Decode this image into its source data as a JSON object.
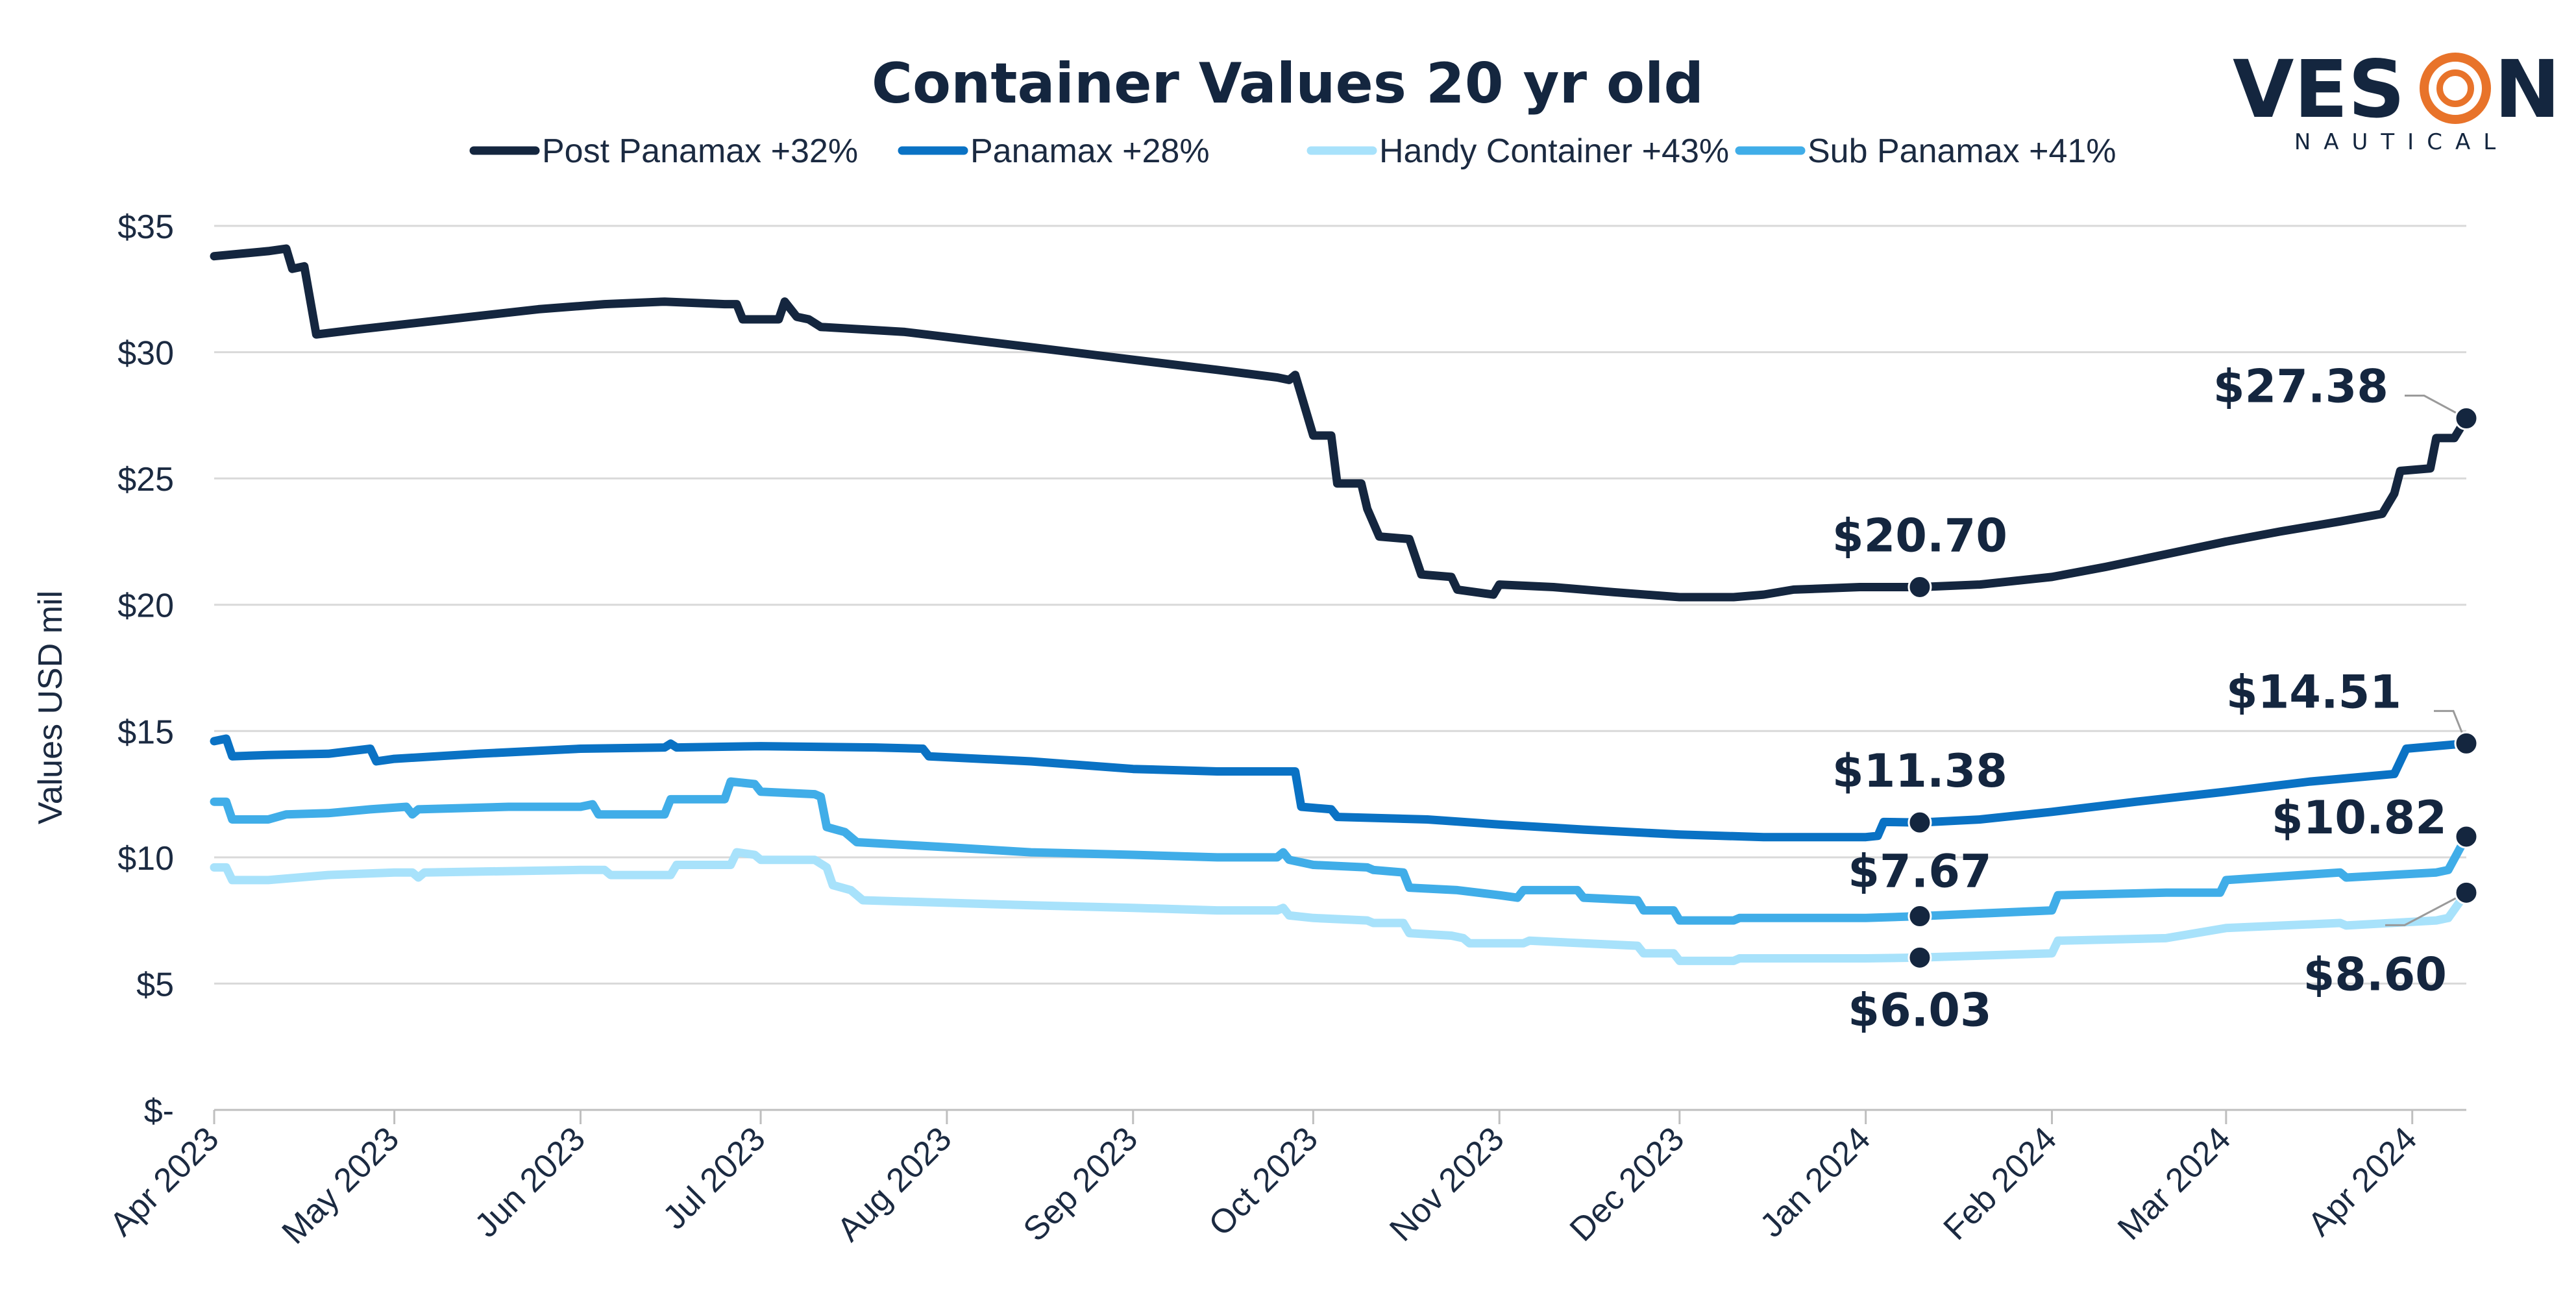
{
  "logo": {
    "text": "VES",
    "text_after": "N",
    "subtext": "NAUTICAL",
    "accent_color": "#e8732a",
    "color": "#14263f"
  },
  "chart_data": {
    "type": "line",
    "title": "Container Values 20 yr old",
    "ylabel": "Values USD mil",
    "xlabel": "",
    "ylim": [
      0,
      35
    ],
    "yticks": [
      {
        "value": 0,
        "label": "$-"
      },
      {
        "value": 5,
        "label": "$5"
      },
      {
        "value": 10,
        "label": "$10"
      },
      {
        "value": 15,
        "label": "$15"
      },
      {
        "value": 20,
        "label": "$20"
      },
      {
        "value": 25,
        "label": "$25"
      },
      {
        "value": 30,
        "label": "$30"
      },
      {
        "value": 35,
        "label": "$35"
      }
    ],
    "xlim": [
      "2023-04-01",
      "2024-04-10"
    ],
    "xticks": [
      {
        "date": "2023-04-01",
        "label": "Apr 2023"
      },
      {
        "date": "2023-05-01",
        "label": "May 2023"
      },
      {
        "date": "2023-06-01",
        "label": "Jun 2023"
      },
      {
        "date": "2023-07-01",
        "label": "Jul 2023"
      },
      {
        "date": "2023-08-01",
        "label": "Aug 2023"
      },
      {
        "date": "2023-09-01",
        "label": "Sep 2023"
      },
      {
        "date": "2023-10-01",
        "label": "Oct 2023"
      },
      {
        "date": "2023-11-01",
        "label": "Nov 2023"
      },
      {
        "date": "2023-12-01",
        "label": "Dec 2023"
      },
      {
        "date": "2024-01-01",
        "label": "Jan 2024"
      },
      {
        "date": "2024-02-01",
        "label": "Feb 2024"
      },
      {
        "date": "2024-03-01",
        "label": "Mar 2024"
      },
      {
        "date": "2024-04-01",
        "label": "Apr 2024"
      }
    ],
    "grid": "horizontal",
    "legend_position": "top-center",
    "series": [
      {
        "name": "Post Panamax +32%",
        "color": "#14263f",
        "points": [
          [
            "2023-04-01",
            33.8
          ],
          [
            "2023-04-10",
            34.0
          ],
          [
            "2023-04-13",
            34.1
          ],
          [
            "2023-04-14",
            33.3
          ],
          [
            "2023-04-16",
            33.4
          ],
          [
            "2023-04-18",
            30.7
          ],
          [
            "2023-04-25",
            30.9
          ],
          [
            "2023-05-10",
            31.3
          ],
          [
            "2023-05-25",
            31.7
          ],
          [
            "2023-06-05",
            31.9
          ],
          [
            "2023-06-15",
            32.0
          ],
          [
            "2023-06-25",
            31.9
          ],
          [
            "2023-06-27",
            31.9
          ],
          [
            "2023-06-28",
            31.3
          ],
          [
            "2023-07-04",
            31.3
          ],
          [
            "2023-07-05",
            32.0
          ],
          [
            "2023-07-07",
            31.4
          ],
          [
            "2023-07-09",
            31.3
          ],
          [
            "2023-07-11",
            31.0
          ],
          [
            "2023-07-25",
            30.8
          ],
          [
            "2023-08-01",
            30.6
          ],
          [
            "2023-08-15",
            30.2
          ],
          [
            "2023-09-01",
            29.7
          ],
          [
            "2023-09-15",
            29.3
          ],
          [
            "2023-09-25",
            29.0
          ],
          [
            "2023-09-27",
            28.9
          ],
          [
            "2023-09-28",
            29.1
          ],
          [
            "2023-09-29",
            28.3
          ],
          [
            "2023-10-01",
            26.7
          ],
          [
            "2023-10-04",
            26.7
          ],
          [
            "2023-10-05",
            24.8
          ],
          [
            "2023-10-09",
            24.8
          ],
          [
            "2023-10-10",
            23.8
          ],
          [
            "2023-10-12",
            22.7
          ],
          [
            "2023-10-17",
            22.6
          ],
          [
            "2023-10-19",
            21.2
          ],
          [
            "2023-10-24",
            21.1
          ],
          [
            "2023-10-25",
            20.6
          ],
          [
            "2023-10-31",
            20.4
          ],
          [
            "2023-11-01",
            20.8
          ],
          [
            "2023-11-10",
            20.7
          ],
          [
            "2023-11-20",
            20.5
          ],
          [
            "2023-12-01",
            20.3
          ],
          [
            "2023-12-10",
            20.3
          ],
          [
            "2023-12-15",
            20.4
          ],
          [
            "2023-12-20",
            20.6
          ],
          [
            "2023-12-31",
            20.7
          ],
          [
            "2024-01-10",
            20.7
          ],
          [
            "2024-01-20",
            20.8
          ],
          [
            "2024-02-01",
            21.1
          ],
          [
            "2024-02-10",
            21.5
          ],
          [
            "2024-02-20",
            22.0
          ],
          [
            "2024-03-01",
            22.5
          ],
          [
            "2024-03-10",
            22.9
          ],
          [
            "2024-03-20",
            23.3
          ],
          [
            "2024-03-27",
            23.6
          ],
          [
            "2024-03-29",
            24.4
          ],
          [
            "2024-03-30",
            25.3
          ],
          [
            "2024-04-04",
            25.4
          ],
          [
            "2024-04-05",
            26.6
          ],
          [
            "2024-04-08",
            26.6
          ],
          [
            "2024-04-10",
            27.38
          ]
        ]
      },
      {
        "name": "Panamax +28%",
        "color": "#0a72c4",
        "points": [
          [
            "2023-04-01",
            14.6
          ],
          [
            "2023-04-03",
            14.7
          ],
          [
            "2023-04-04",
            14.0
          ],
          [
            "2023-04-10",
            14.05
          ],
          [
            "2023-04-20",
            14.1
          ],
          [
            "2023-04-27",
            14.3
          ],
          [
            "2023-04-28",
            13.8
          ],
          [
            "2023-05-01",
            13.9
          ],
          [
            "2023-05-15",
            14.1
          ],
          [
            "2023-06-01",
            14.3
          ],
          [
            "2023-06-15",
            14.35
          ],
          [
            "2023-06-16",
            14.5
          ],
          [
            "2023-06-17",
            14.35
          ],
          [
            "2023-07-01",
            14.4
          ],
          [
            "2023-07-20",
            14.35
          ],
          [
            "2023-07-28",
            14.3
          ],
          [
            "2023-07-29",
            14.0
          ],
          [
            "2023-08-15",
            13.8
          ],
          [
            "2023-09-01",
            13.5
          ],
          [
            "2023-09-15",
            13.4
          ],
          [
            "2023-09-28",
            13.4
          ],
          [
            "2023-09-29",
            12.0
          ],
          [
            "2023-10-04",
            11.9
          ],
          [
            "2023-10-05",
            11.6
          ],
          [
            "2023-10-20",
            11.5
          ],
          [
            "2023-11-01",
            11.3
          ],
          [
            "2023-11-15",
            11.1
          ],
          [
            "2023-12-01",
            10.9
          ],
          [
            "2023-12-15",
            10.8
          ],
          [
            "2024-01-01",
            10.8
          ],
          [
            "2024-01-03",
            10.85
          ],
          [
            "2024-01-04",
            11.4
          ],
          [
            "2024-01-10",
            11.38
          ],
          [
            "2024-01-20",
            11.5
          ],
          [
            "2024-02-01",
            11.8
          ],
          [
            "2024-02-15",
            12.2
          ],
          [
            "2024-03-01",
            12.6
          ],
          [
            "2024-03-15",
            13.0
          ],
          [
            "2024-03-29",
            13.3
          ],
          [
            "2024-03-31",
            14.3
          ],
          [
            "2024-04-10",
            14.51
          ]
        ]
      },
      {
        "name": "Handy Container +43%",
        "color": "#a8e2fb",
        "points": [
          [
            "2023-04-01",
            9.6
          ],
          [
            "2023-04-03",
            9.6
          ],
          [
            "2023-04-04",
            9.1
          ],
          [
            "2023-04-10",
            9.1
          ],
          [
            "2023-04-20",
            9.3
          ],
          [
            "2023-05-01",
            9.4
          ],
          [
            "2023-05-04",
            9.4
          ],
          [
            "2023-05-05",
            9.2
          ],
          [
            "2023-05-06",
            9.4
          ],
          [
            "2023-06-01",
            9.5
          ],
          [
            "2023-06-05",
            9.5
          ],
          [
            "2023-06-06",
            9.3
          ],
          [
            "2023-06-16",
            9.3
          ],
          [
            "2023-06-17",
            9.7
          ],
          [
            "2023-06-26",
            9.7
          ],
          [
            "2023-06-27",
            10.2
          ],
          [
            "2023-06-30",
            10.1
          ],
          [
            "2023-07-01",
            9.9
          ],
          [
            "2023-07-10",
            9.9
          ],
          [
            "2023-07-12",
            9.6
          ],
          [
            "2023-07-13",
            8.9
          ],
          [
            "2023-07-16",
            8.7
          ],
          [
            "2023-07-18",
            8.3
          ],
          [
            "2023-08-01",
            8.2
          ],
          [
            "2023-08-15",
            8.1
          ],
          [
            "2023-09-01",
            8.0
          ],
          [
            "2023-09-15",
            7.9
          ],
          [
            "2023-09-25",
            7.9
          ],
          [
            "2023-09-26",
            8.0
          ],
          [
            "2023-09-27",
            7.7
          ],
          [
            "2023-10-01",
            7.6
          ],
          [
            "2023-10-10",
            7.5
          ],
          [
            "2023-10-11",
            7.4
          ],
          [
            "2023-10-16",
            7.4
          ],
          [
            "2023-10-17",
            7.0
          ],
          [
            "2023-10-24",
            6.9
          ],
          [
            "2023-10-26",
            6.8
          ],
          [
            "2023-10-27",
            6.6
          ],
          [
            "2023-11-05",
            6.6
          ],
          [
            "2023-11-06",
            6.7
          ],
          [
            "2023-11-15",
            6.6
          ],
          [
            "2023-11-24",
            6.5
          ],
          [
            "2023-11-25",
            6.2
          ],
          [
            "2023-11-30",
            6.2
          ],
          [
            "2023-12-01",
            5.9
          ],
          [
            "2023-12-10",
            5.9
          ],
          [
            "2023-12-11",
            6.0
          ],
          [
            "2024-01-01",
            6.0
          ],
          [
            "2024-01-10",
            6.03
          ],
          [
            "2024-02-01",
            6.2
          ],
          [
            "2024-02-02",
            6.7
          ],
          [
            "2024-02-20",
            6.8
          ],
          [
            "2024-03-01",
            7.2
          ],
          [
            "2024-03-20",
            7.4
          ],
          [
            "2024-03-21",
            7.3
          ],
          [
            "2024-04-05",
            7.5
          ],
          [
            "2024-04-07",
            7.6
          ],
          [
            "2024-04-10",
            8.6
          ]
        ]
      },
      {
        "name": "Sub Panamax +41%",
        "color": "#40ade8",
        "points": [
          [
            "2023-04-01",
            12.2
          ],
          [
            "2023-04-03",
            12.2
          ],
          [
            "2023-04-04",
            11.5
          ],
          [
            "2023-04-10",
            11.5
          ],
          [
            "2023-04-13",
            11.7
          ],
          [
            "2023-04-20",
            11.75
          ],
          [
            "2023-04-27",
            11.9
          ],
          [
            "2023-05-03",
            12.0
          ],
          [
            "2023-05-04",
            11.7
          ],
          [
            "2023-05-05",
            11.9
          ],
          [
            "2023-05-20",
            12.0
          ],
          [
            "2023-06-01",
            12.0
          ],
          [
            "2023-06-03",
            12.1
          ],
          [
            "2023-06-04",
            11.7
          ],
          [
            "2023-06-15",
            11.7
          ],
          [
            "2023-06-16",
            12.3
          ],
          [
            "2023-06-25",
            12.3
          ],
          [
            "2023-06-26",
            13.0
          ],
          [
            "2023-06-30",
            12.9
          ],
          [
            "2023-07-01",
            12.6
          ],
          [
            "2023-07-10",
            12.5
          ],
          [
            "2023-07-11",
            12.4
          ],
          [
            "2023-07-12",
            11.2
          ],
          [
            "2023-07-15",
            11.0
          ],
          [
            "2023-07-17",
            10.6
          ],
          [
            "2023-08-01",
            10.4
          ],
          [
            "2023-08-15",
            10.2
          ],
          [
            "2023-09-01",
            10.1
          ],
          [
            "2023-09-15",
            10.0
          ],
          [
            "2023-09-25",
            10.0
          ],
          [
            "2023-09-26",
            10.2
          ],
          [
            "2023-09-27",
            9.9
          ],
          [
            "2023-10-01",
            9.7
          ],
          [
            "2023-10-10",
            9.6
          ],
          [
            "2023-10-11",
            9.5
          ],
          [
            "2023-10-16",
            9.4
          ],
          [
            "2023-10-17",
            8.8
          ],
          [
            "2023-10-25",
            8.7
          ],
          [
            "2023-11-01",
            8.5
          ],
          [
            "2023-11-04",
            8.4
          ],
          [
            "2023-11-05",
            8.7
          ],
          [
            "2023-11-14",
            8.7
          ],
          [
            "2023-11-15",
            8.4
          ],
          [
            "2023-11-24",
            8.3
          ],
          [
            "2023-11-25",
            7.9
          ],
          [
            "2023-11-30",
            7.9
          ],
          [
            "2023-12-01",
            7.5
          ],
          [
            "2023-12-10",
            7.5
          ],
          [
            "2023-12-11",
            7.6
          ],
          [
            "2024-01-01",
            7.6
          ],
          [
            "2024-01-10",
            7.67
          ],
          [
            "2024-02-01",
            7.9
          ],
          [
            "2024-02-02",
            8.5
          ],
          [
            "2024-02-20",
            8.6
          ],
          [
            "2024-02-29",
            8.6
          ],
          [
            "2024-03-01",
            9.1
          ],
          [
            "2024-03-20",
            9.4
          ],
          [
            "2024-03-21",
            9.2
          ],
          [
            "2024-04-05",
            9.4
          ],
          [
            "2024-04-07",
            9.5
          ],
          [
            "2024-04-10",
            10.82
          ]
        ]
      }
    ],
    "annotations": [
      {
        "label": "$27.38",
        "series": "Post Panamax +32%",
        "date": "2024-04-10",
        "value": 27.38,
        "leader": true
      },
      {
        "label": "$20.70",
        "series": "Post Panamax +32%",
        "date": "2024-01-10",
        "value": 20.7,
        "leader": false
      },
      {
        "label": "$14.51",
        "series": "Panamax +28%",
        "date": "2024-04-10",
        "value": 14.51,
        "leader": true
      },
      {
        "label": "$11.38",
        "series": "Panamax +28%",
        "date": "2024-01-10",
        "value": 11.38,
        "leader": false
      },
      {
        "label": "$10.82",
        "series": "Sub Panamax +41%",
        "date": "2024-04-10",
        "value": 10.82,
        "leader": false
      },
      {
        "label": "$7.67",
        "series": "Sub Panamax +41%",
        "date": "2024-01-10",
        "value": 7.67,
        "leader": false
      },
      {
        "label": "$6.03",
        "series": "Handy Container +43%",
        "date": "2024-01-10",
        "value": 6.03,
        "leader": false
      },
      {
        "label": "$8.60",
        "series": "Handy Container +43%",
        "date": "2024-04-10",
        "value": 8.6,
        "leader": true
      }
    ]
  }
}
